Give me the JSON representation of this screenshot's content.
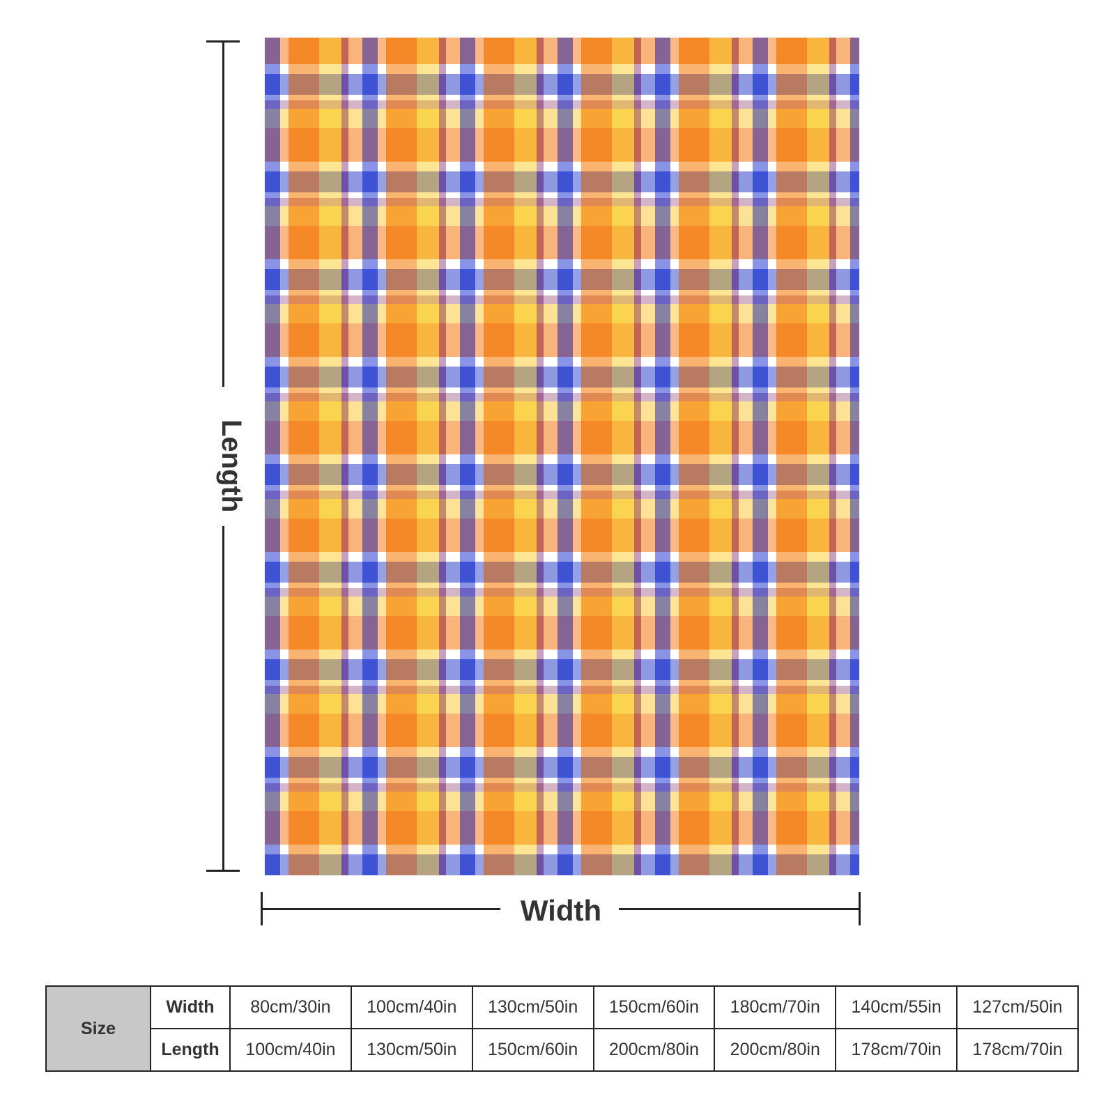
{
  "diagram": {
    "length_label": "Length",
    "width_label": "Width"
  },
  "size_table": {
    "title": "Size",
    "width_label": "Width",
    "length_label": "Length",
    "widths": [
      "80cm/30in",
      "100cm/40in",
      "130cm/50in",
      "150cm/60in",
      "180cm/70in",
      "140cm/55in",
      "127cm/50in"
    ],
    "lengths": [
      "100cm/40in",
      "130cm/50in",
      "150cm/60in",
      "200cm/80in",
      "200cm/80in",
      "178cm/70in",
      "178cm/70in"
    ]
  },
  "colors": {
    "orange": "#f5821f",
    "blue": "#1f3bc8",
    "yellow": "#f7d23c",
    "purple": "#7a2f6e"
  }
}
